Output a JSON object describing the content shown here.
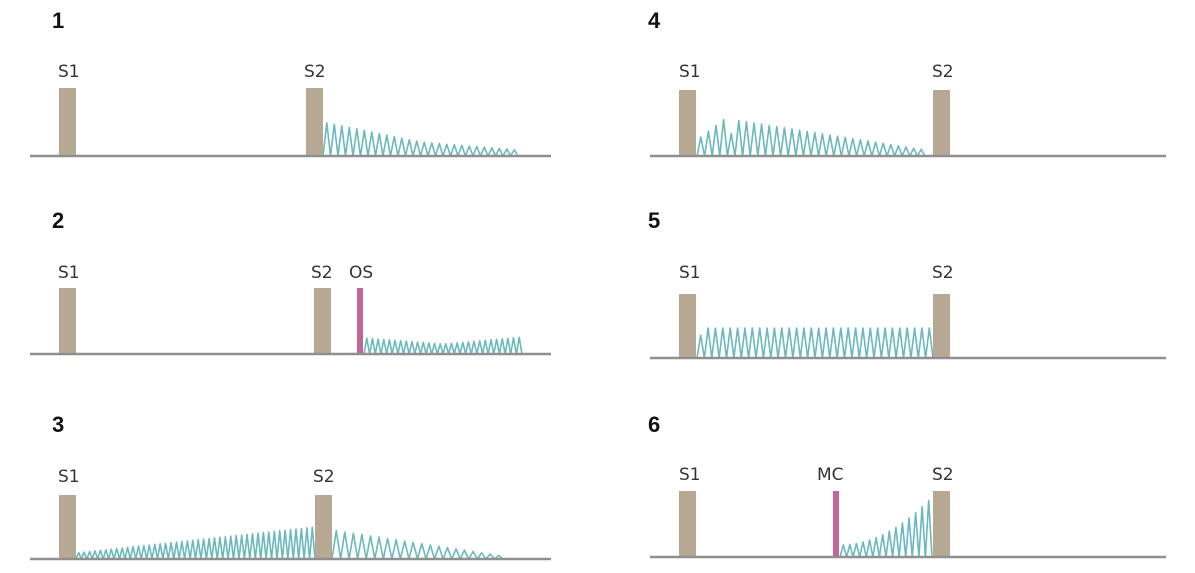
{
  "colors": {
    "baseline": "#8f8f8f",
    "heart_sound_bar": "#b7a894",
    "murmur_wave": "#6bb8bd",
    "snap_click_marker": "#c2669a",
    "text": "#222222"
  },
  "panels": [
    {
      "number": "1",
      "labels": {
        "s1": "S1",
        "s2": "S2"
      },
      "murmur_shape": "early-diastolic decrescendo after S2",
      "marker_label": ""
    },
    {
      "number": "2",
      "labels": {
        "s1": "S1",
        "s2": "S2",
        "marker": "OS"
      },
      "murmur_shape": "diastolic rumble after opening snap",
      "marker_label": "OS"
    },
    {
      "number": "3",
      "labels": {
        "s1": "S1",
        "s2": "S2"
      },
      "murmur_shape": "continuous crescendo-decrescendo peaking at S2",
      "marker_label": ""
    },
    {
      "number": "4",
      "labels": {
        "s1": "S1",
        "s2": "S2"
      },
      "murmur_shape": "systolic crescendo-decrescendo (ejection)",
      "marker_label": ""
    },
    {
      "number": "5",
      "labels": {
        "s1": "S1",
        "s2": "S2"
      },
      "murmur_shape": "holosystolic plateau",
      "marker_label": ""
    },
    {
      "number": "6",
      "labels": {
        "s1": "S1",
        "s2": "S2",
        "marker": "MC"
      },
      "murmur_shape": "late systolic crescendo after midsystolic click",
      "marker_label": "MC"
    }
  ]
}
